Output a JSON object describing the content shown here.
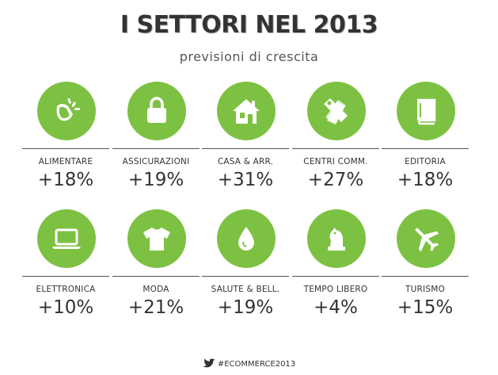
{
  "header": {
    "title": "I SETTORI NEL 2013",
    "subtitle": "previsioni di crescita"
  },
  "colors": {
    "accent": "#7dc142",
    "text": "#333333",
    "rule": "#555555"
  },
  "sectors": [
    {
      "label": "ALIMENTARE",
      "value": "+18%",
      "icon": "food-icon"
    },
    {
      "label": "ASSICURAZIONI",
      "value": "+19%",
      "icon": "lock-icon"
    },
    {
      "label": "CASA & ARR.",
      "value": "+31%",
      "icon": "house-icon"
    },
    {
      "label": "CENTRI COMM.",
      "value": "+27%",
      "icon": "price-tag-icon"
    },
    {
      "label": "EDITORIA",
      "value": "+18%",
      "icon": "book-icon"
    },
    {
      "label": "ELETTRONICA",
      "value": "+10%",
      "icon": "laptop-icon"
    },
    {
      "label": "MODA",
      "value": "+21%",
      "icon": "tshirt-icon"
    },
    {
      "label": "SALUTE & BELL.",
      "value": "+19%",
      "icon": "drop-icon"
    },
    {
      "label": "TEMPO LIBERO",
      "value": "+4%",
      "icon": "chess-knight-icon"
    },
    {
      "label": "TURISMO",
      "value": "+15%",
      "icon": "airplane-icon"
    }
  ],
  "footer": {
    "hashtag": "#ECOMMERCE2013",
    "icon": "twitter-bird-icon"
  }
}
